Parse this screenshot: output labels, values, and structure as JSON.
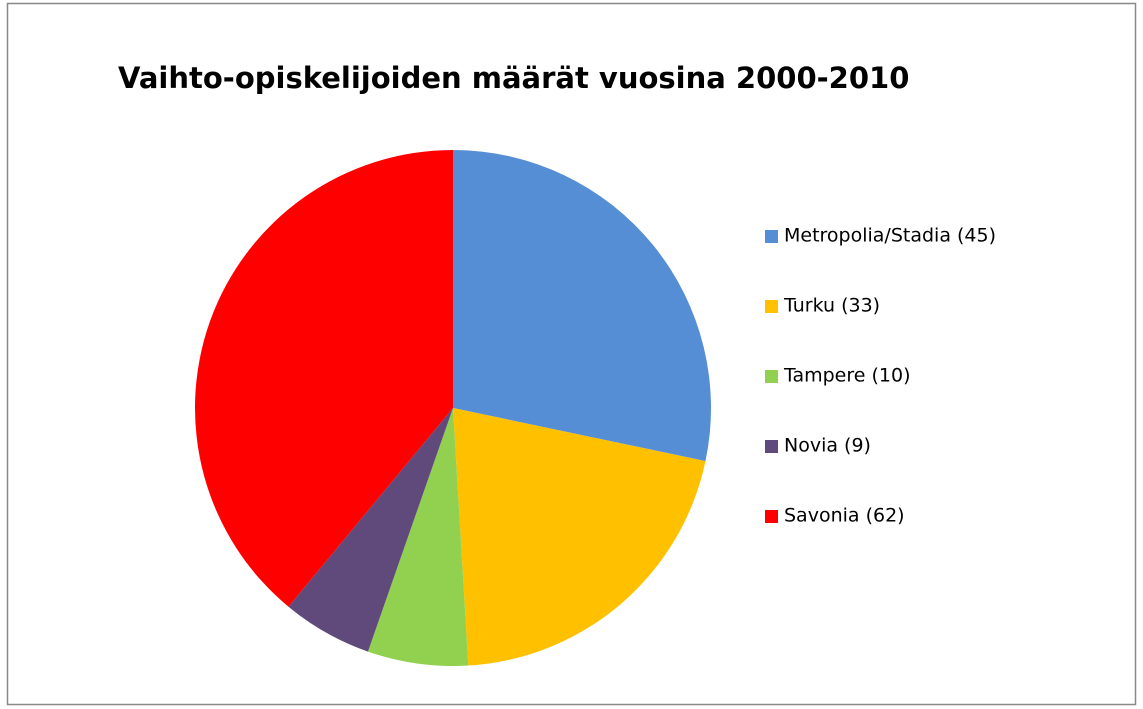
{
  "chart_data": {
    "type": "pie",
    "title": "Vaihto-opiskelijoiden määrät vuosina 2000-2010",
    "categories": [
      "Metropolia/Stadia (45)",
      "Turku (33)",
      "Tampere (10)",
      "Novia (9)",
      "Savonia (62)"
    ],
    "values": [
      45,
      33,
      10,
      9,
      62
    ],
    "colors": [
      "#558ed5",
      "#ffc000",
      "#92d050",
      "#604a7b",
      "#ff0000"
    ],
    "legend": "right"
  }
}
